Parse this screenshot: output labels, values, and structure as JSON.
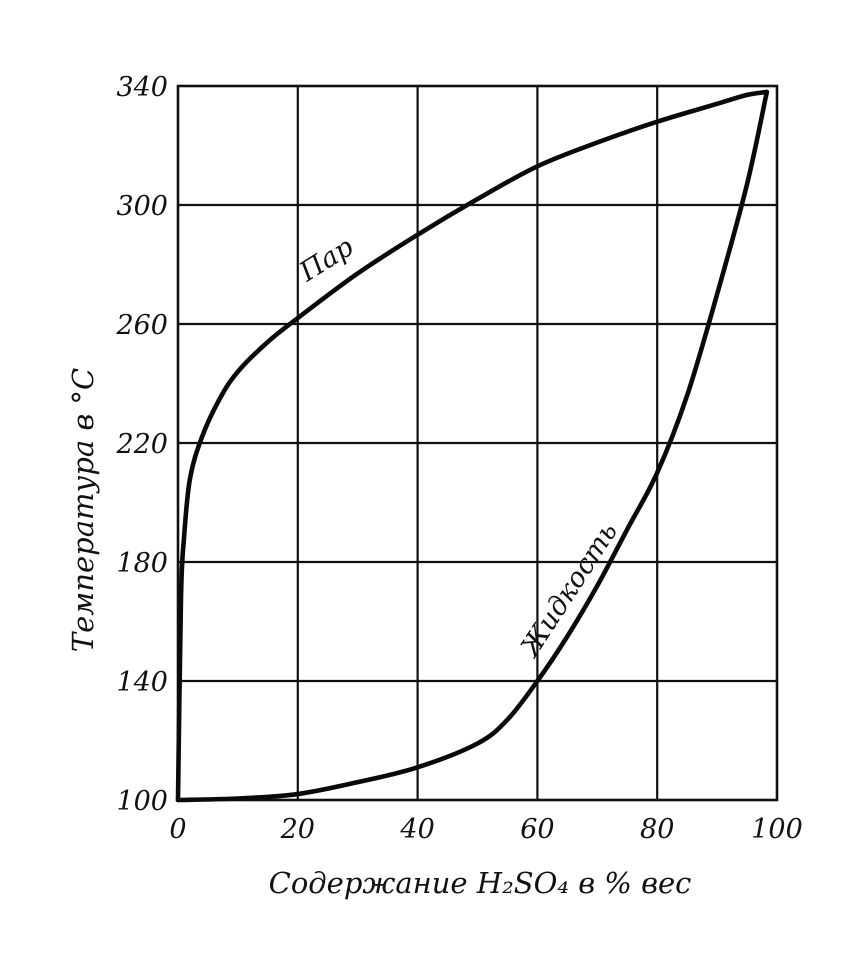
{
  "chart_data": {
    "type": "line",
    "xlabel": "Содержание H₂SO₄ в % вес",
    "ylabel": "Температура в °С",
    "xlim": [
      0,
      100
    ],
    "ylim": [
      100,
      340
    ],
    "x_ticks": [
      "0",
      "20",
      "40",
      "60",
      "80",
      "100"
    ],
    "y_ticks": [
      "100",
      "140",
      "180",
      "220",
      "260",
      "300",
      "340"
    ],
    "grid": true,
    "series": [
      {
        "name": "Пар",
        "x": [
          0,
          0.5,
          1,
          2,
          4,
          7,
          10,
          15,
          20,
          30,
          40,
          50,
          60,
          70,
          80,
          90,
          95,
          98.3
        ],
        "y": [
          100,
          168,
          188,
          208,
          222,
          235,
          244,
          254,
          262,
          277,
          290,
          302,
          313,
          321,
          328,
          334,
          337,
          338
        ]
      },
      {
        "name": "Жидкость",
        "x": [
          0,
          10,
          20,
          30,
          40,
          50,
          55,
          60,
          65,
          70,
          75,
          80,
          85,
          90,
          95,
          98.3
        ],
        "y": [
          100,
          100.5,
          102,
          106,
          111,
          119,
          127,
          140,
          155,
          172,
          191,
          210,
          236,
          270,
          307,
          338
        ]
      }
    ]
  }
}
